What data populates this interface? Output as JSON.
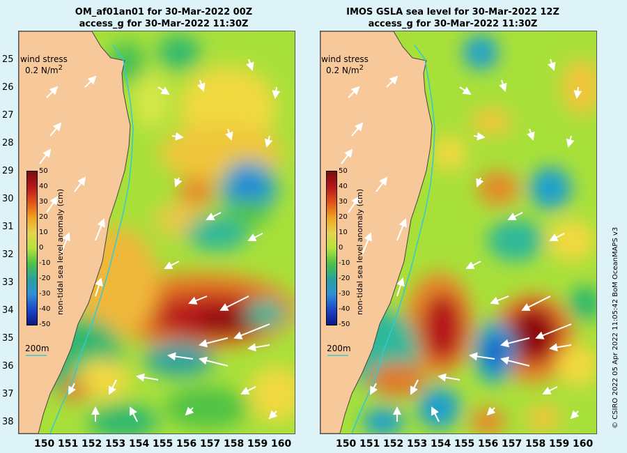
{
  "left": {
    "title_line1": "OM_af01an01 for 30-Mar-2022 00Z",
    "title_line2": "access_g for 30-Mar-2022 11:30Z"
  },
  "right": {
    "title_line1": "IMOS GSLA sea level  for 30-Mar-2022 12Z",
    "title_line2": "access_g for 30-Mar-2022 11:30Z"
  },
  "wind_stress_label": "wind stress",
  "wind_stress_scale_value": "0.2 N/m",
  "wind_stress_scale_exp": "2",
  "depth_contour_label": "200m",
  "colorbar": {
    "label": "non-tidal sea level anomaly (cm)",
    "ticks": [
      "50",
      "40",
      "30",
      "20",
      "10",
      "0",
      "-10",
      "-20",
      "-30",
      "-40",
      "-50"
    ]
  },
  "latitude_labels": [
    "25",
    "26",
    "27",
    "28",
    "29",
    "30",
    "31",
    "32",
    "33",
    "34",
    "35",
    "36",
    "37",
    "38"
  ],
  "longitude_labels": [
    "150",
    "151",
    "152",
    "153",
    "154",
    "155",
    "156",
    "157",
    "158",
    "159",
    "160"
  ],
  "copyright": "© CSIRO 2022   05 Apr 2022 11:05:42 BoM OceanMAPS v3",
  "colors": {
    "land": "#f6c89a",
    "ocean_base": "#a8e03a",
    "coastline_200m": "#31c9d6"
  }
}
